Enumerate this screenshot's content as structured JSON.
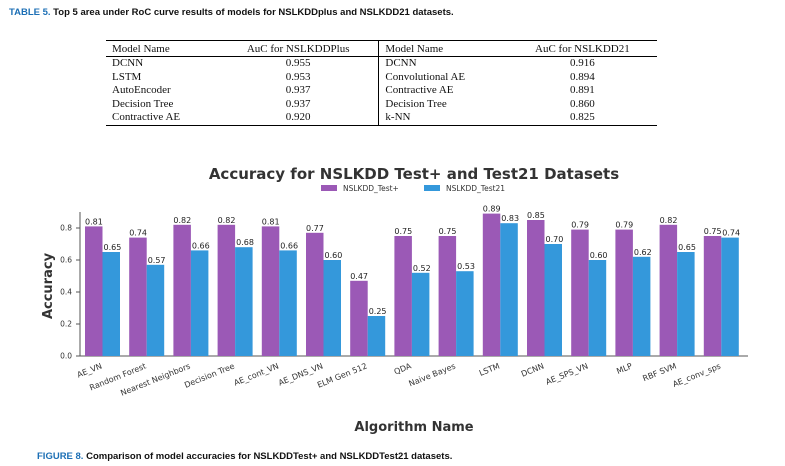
{
  "table_caption": {
    "label": "TABLE 5.",
    "text": "Top 5 area under RoC curve results of models for NSLKDDplus and NSLKDD21 datasets."
  },
  "table": {
    "headers": [
      "Model Name",
      "AuC for NSLKDDPlus",
      "Model Name",
      "AuC for NSLKDD21"
    ],
    "rows": [
      [
        "DCNN",
        "0.955",
        "DCNN",
        "0.916"
      ],
      [
        "LSTM",
        "0.953",
        "Convolutional AE",
        "0.894"
      ],
      [
        "AutoEncoder",
        "0.937",
        "Contractive AE",
        "0.891"
      ],
      [
        "Decision Tree",
        "0.937",
        "Decision Tree",
        "0.860"
      ],
      [
        "Contractive AE",
        "0.920",
        "k-NN",
        "0.825"
      ]
    ]
  },
  "figure_caption": {
    "label": "FIGURE 8.",
    "text": "Comparison of model accuracies for NSLKDDTest+ and NSLKDDTest21 datasets."
  },
  "chart_data": {
    "type": "bar",
    "title": "Accuracy for NSLKDD Test+ and Test21 Datasets",
    "xlabel": "Algorithm Name",
    "ylabel": "Accuracy",
    "ylim": [
      0,
      0.9
    ],
    "yticks": [
      "0.0",
      "0.2",
      "0.4",
      "0.6",
      "0.8"
    ],
    "legend_position": "top-center",
    "grid": false,
    "categories": [
      "AE_VN",
      "Random Forest",
      "Nearest Neighbors",
      "Decision Tree",
      "AE_cont_VN",
      "AE_DNS_VN",
      "ELM Gen 512",
      "QDA",
      "Naive Bayes",
      "LSTM",
      "DCNN",
      "AE_SPS_VN",
      "MLP",
      "RBF SVM",
      "AE_conv_sps"
    ],
    "series": [
      {
        "name": "NSLKDD_Test+",
        "color": "#9b59b6",
        "values": [
          0.81,
          0.74,
          0.82,
          0.82,
          0.81,
          0.77,
          0.47,
          0.75,
          0.75,
          0.89,
          0.85,
          0.79,
          0.79,
          0.82,
          0.75
        ]
      },
      {
        "name": "NSLKDD_Test21",
        "color": "#3498db",
        "values": [
          0.65,
          0.57,
          0.66,
          0.68,
          0.66,
          0.6,
          0.25,
          0.52,
          0.53,
          0.83,
          0.7,
          0.6,
          0.62,
          0.65,
          0.74
        ]
      }
    ]
  }
}
